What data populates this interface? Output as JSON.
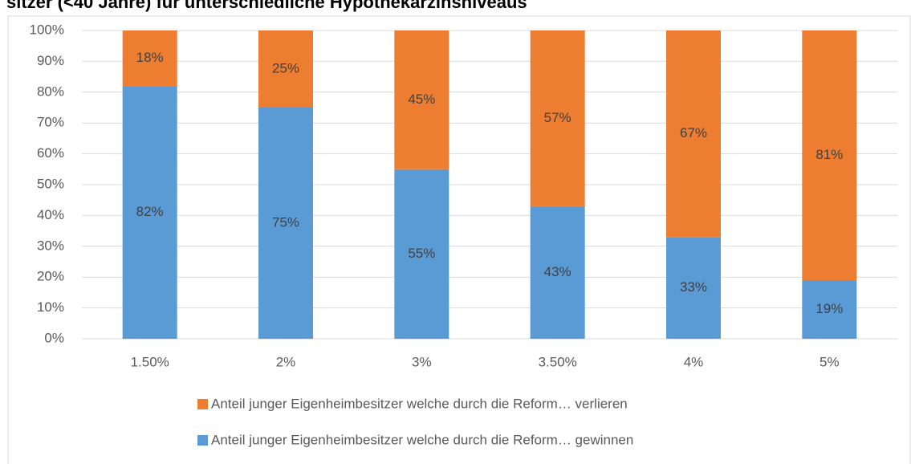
{
  "chart_data": {
    "type": "stacked_bar",
    "title": "sitzer (<40 Jahre) für unterschiedliche Hypothekarzinsniveaus",
    "categories": [
      "1.50%",
      "2%",
      "3%",
      "3.50%",
      "4%",
      "5%"
    ],
    "series": [
      {
        "name": "Anteil junger Eigenheimbesitzer welche durch die Reform… gewinnen",
        "color": "#5b9bd5",
        "values": [
          82,
          75,
          55,
          43,
          33,
          19
        ],
        "value_labels": [
          "82%",
          "75%",
          "55%",
          "43%",
          "33%",
          "19%"
        ]
      },
      {
        "name": "Anteil junger Eigenheimbesitzer welche durch die Reform… verlieren",
        "color": "#ed7d31",
        "values": [
          18,
          25,
          45,
          57,
          67,
          81
        ],
        "value_labels": [
          "18%",
          "25%",
          "45%",
          "57%",
          "67%",
          "81%"
        ]
      }
    ],
    "ylim": [
      0,
      100
    ],
    "yticks": [
      {
        "value": 0,
        "label": "0%"
      },
      {
        "value": 10,
        "label": "10%"
      },
      {
        "value": 20,
        "label": "20%"
      },
      {
        "value": 30,
        "label": "30%"
      },
      {
        "value": 40,
        "label": "40%"
      },
      {
        "value": 50,
        "label": "50%"
      },
      {
        "value": 60,
        "label": "60%"
      },
      {
        "value": 70,
        "label": "70%"
      },
      {
        "value": 80,
        "label": "80%"
      },
      {
        "value": 90,
        "label": "90%"
      },
      {
        "value": 100,
        "label": "100%"
      }
    ],
    "grid": true
  }
}
